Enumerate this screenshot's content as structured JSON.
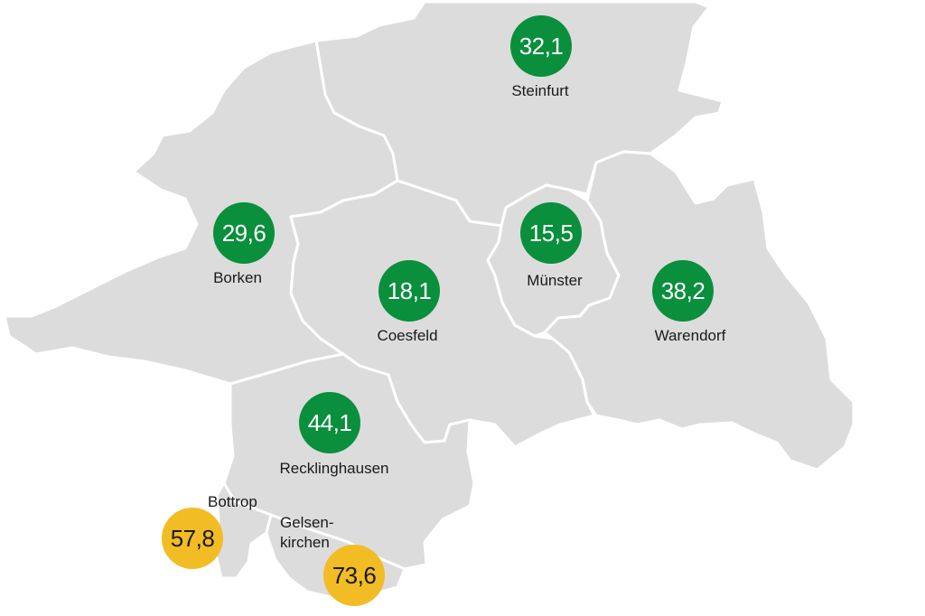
{
  "colors": {
    "region_fill": "#dcdcdc",
    "border": "#ffffff",
    "low_value": "#0a8f3c",
    "high_value": "#f2bc25"
  },
  "regions": {
    "steinfurt": {
      "name": "Steinfurt",
      "value": "32,1",
      "level": "low"
    },
    "borken": {
      "name": "Borken",
      "value": "29,6",
      "level": "low"
    },
    "coesfeld": {
      "name": "Coesfeld",
      "value": "18,1",
      "level": "low"
    },
    "muenster": {
      "name": "Münster",
      "value": "15,5",
      "level": "low"
    },
    "warendorf": {
      "name": "Warendorf",
      "value": "38,2",
      "level": "low"
    },
    "recklinghausen": {
      "name": "Recklinghausen",
      "value": "44,1",
      "level": "low"
    },
    "bottrop": {
      "name": "Bottrop",
      "value": "57,8",
      "level": "high"
    },
    "gelsenkirchen": {
      "name_line1": "Gelsen-",
      "name_line2": "kirchen",
      "value": "73,6",
      "level": "high"
    }
  }
}
